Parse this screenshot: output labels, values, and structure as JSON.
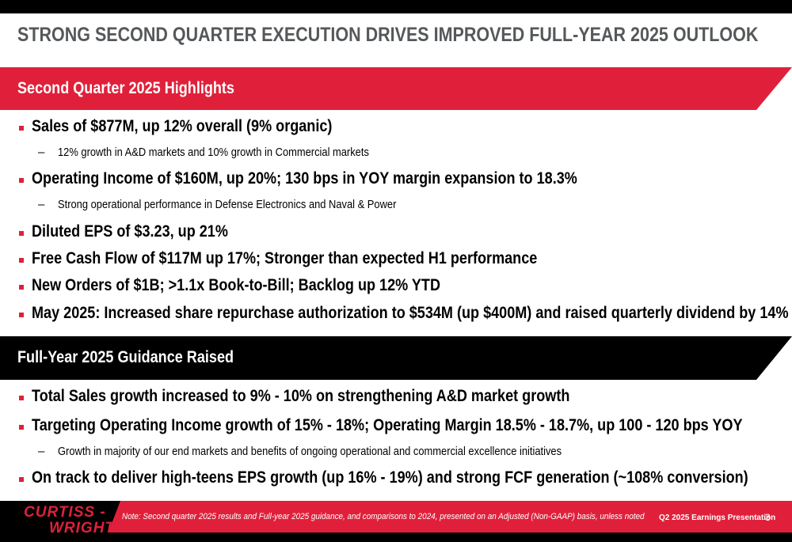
{
  "title": "STRONG SECOND QUARTER EXECUTION DRIVES IMPROVED FULL-YEAR 2025 OUTLOOK",
  "section1": {
    "heading": "Second Quarter 2025 Highlights",
    "items": [
      {
        "text": "Sales of $877M, up 12% overall (9% organic)",
        "sub": "12% growth in A&D markets and 10% growth in Commercial markets"
      },
      {
        "text": "Operating Income of $160M, up 20%; 130 bps in YOY margin expansion to 18.3%",
        "sub": "Strong operational performance in Defense Electronics and Naval & Power"
      },
      {
        "text": "Diluted EPS of $3.23, up 21%"
      },
      {
        "text": "Free Cash Flow of $117M up 17%; Stronger than expected H1 performance"
      },
      {
        "text": "New Orders of $1B; >1.1x Book-to-Bill; Backlog up 12% YTD"
      },
      {
        "text": "May 2025: Increased share repurchase authorization to $534M (up $400M) and raised quarterly dividend by 14%"
      }
    ]
  },
  "section2": {
    "heading": "Full-Year 2025 Guidance Raised",
    "items": [
      {
        "text": "Total Sales growth increased to 9% - 10% on strengthening A&D market growth"
      },
      {
        "text": "Targeting Operating Income growth of 15% - 18%; Operating Margin 18.5% - 18.7%, up 100 - 120 bps YOY",
        "sub": "Growth in majority of our end markets and benefits of ongoing operational and commercial excellence initiatives"
      },
      {
        "text": "On track to deliver high-teens EPS growth (up 16% - 19%) and strong FCF generation (~108% conversion)"
      }
    ]
  },
  "footer": {
    "logo_line1": "CURTISS -",
    "logo_line2": "WRIGHT",
    "note": "Note: Second quarter 2025 results and Full-year 2025 guidance, and comparisons to 2024, presented on an Adjusted (Non-GAAP) basis, unless noted",
    "presentation": "Q2 2025 Earnings Presentation",
    "page": "3"
  },
  "colors": {
    "accent": "#e0203a",
    "title_gray": "#55585a",
    "black": "#000000"
  },
  "sub_marker": "–"
}
